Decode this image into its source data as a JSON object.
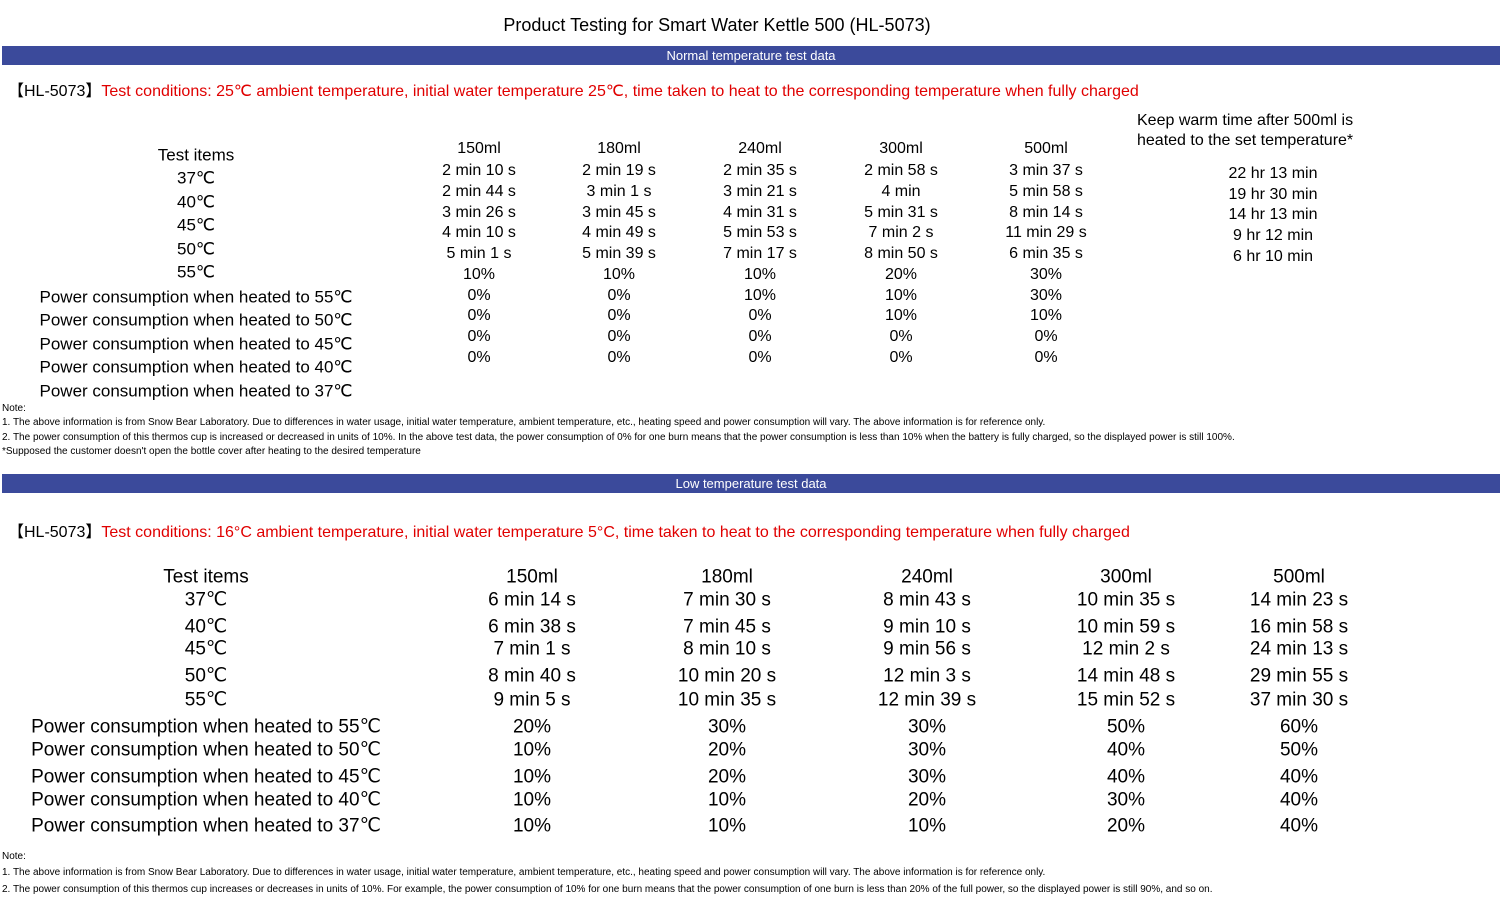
{
  "header": {
    "title": "Product Testing for Smart Water Kettle 500 (HL-5073)"
  },
  "sections": [
    {
      "banner": "Normal temperature test data",
      "prefix": "【HL-5073】",
      "conditions": "Test conditions: 25℃ ambient temperature, initial water temperature 25℃, time taken to heat to the corresponding temperature when fully charged",
      "row_labels": [
        "Test items",
        "37℃",
        "40℃",
        "45℃",
        "50℃",
        "55℃",
        "Power consumption when heated to 55℃",
        "Power consumption when heated to 50℃",
        "Power consumption when heated to 45℃",
        "Power consumption when heated to 40℃",
        "Power consumption when heated to 37℃"
      ],
      "columns": [
        {
          "header": "150ml",
          "values": [
            "2 min 10 s",
            "2 min 44 s",
            "3 min 26 s",
            "4 min 10 s",
            "5 min 1 s",
            "10%",
            "0%",
            "0%",
            "0%",
            "0%"
          ]
        },
        {
          "header": "180ml",
          "values": [
            "2 min 19 s",
            "3 min 1 s",
            "3 min 45 s",
            "4 min 49 s",
            "5 min 39 s",
            "10%",
            "0%",
            "0%",
            "0%",
            "0%"
          ]
        },
        {
          "header": "240ml",
          "values": [
            "2 min 35 s",
            "3 min 21 s",
            "4 min 31 s",
            "5 min 53 s",
            "7 min 17 s",
            "10%",
            "10%",
            "0%",
            "0%",
            "0%"
          ]
        },
        {
          "header": "300ml",
          "values": [
            "2 min 58 s",
            "4 min",
            "5 min 31 s",
            "7 min 2 s",
            "8 min 50 s",
            "20%",
            "10%",
            "10%",
            "0%",
            "0%"
          ]
        },
        {
          "header": "500ml",
          "values": [
            "3 min 37 s",
            "5 min 58 s",
            "8 min 14 s",
            "11 min 29 s",
            "6 min 35 s",
            "30%",
            "30%",
            "10%",
            "0%",
            "0%"
          ]
        }
      ],
      "keep_warm": {
        "header_lines": [
          "Keep warm time after 500ml is",
          "heated to the set temperature*"
        ],
        "values": [
          "22 hr 13 min",
          "19 hr 30 min",
          "14 hr 13 min",
          "9 hr 12 min",
          "6 hr 10 min"
        ]
      },
      "notes": [
        "Note:",
        "1. The above information is from Snow Bear Laboratory. Due to differences in water usage, initial water temperature, ambient temperature, etc., heating speed and power consumption will vary. The above information is for reference only.",
        "2. The power consumption of this thermos cup is increased or decreased in units of 10%. In the above test data, the power consumption of 0% for one burn means that the power consumption is less than 10% when the battery is fully charged, so the displayed power is still 100%.",
        "*Supposed the customer doesn't open the bottle cover after heating to the desired temperature"
      ]
    },
    {
      "banner": "Low temperature test data",
      "prefix": "【HL-5073】",
      "conditions": "Test conditions: 16°C ambient temperature, initial water temperature 5°C, time taken to heat to the corresponding temperature when fully charged",
      "row_labels": [
        "Test items",
        "37℃",
        "40℃",
        "45℃",
        "50℃",
        "55℃",
        "Power consumption when heated to 55℃",
        "Power consumption when heated to 50℃",
        "Power consumption when heated to 45℃",
        "Power consumption when heated to 40℃",
        "Power consumption when heated to 37℃"
      ],
      "columns": [
        {
          "header": "150ml",
          "values": [
            "6 min 14 s",
            "6 min 38 s",
            "7 min 1 s",
            "8 min 40 s",
            "9 min 5 s",
            "20%",
            "10%",
            "10%",
            "10%",
            "10%"
          ]
        },
        {
          "header": "180ml",
          "values": [
            "7 min 30 s",
            "7 min 45 s",
            "8 min 10 s",
            "10 min 20 s",
            "10 min 35 s",
            "30%",
            "20%",
            "20%",
            "10%",
            "10%"
          ]
        },
        {
          "header": "240ml",
          "values": [
            "8 min 43 s",
            "9 min 10 s",
            "9 min 56 s",
            "12 min 3 s",
            "12 min 39 s",
            "30%",
            "30%",
            "30%",
            "20%",
            "10%"
          ]
        },
        {
          "header": "300ml",
          "values": [
            "10 min 35 s",
            "10 min 59 s",
            "12 min 2 s",
            "14 min 48 s",
            "15 min 52 s",
            "50%",
            "40%",
            "40%",
            "30%",
            "20%"
          ]
        },
        {
          "header": "500ml",
          "values": [
            "14 min 23 s",
            "16 min 58 s",
            "24 min 13 s",
            "29 min 55 s",
            "37 min 30 s",
            "60%",
            "50%",
            "40%",
            "40%",
            "40%"
          ]
        }
      ],
      "notes": [
        "Note:",
        "1. The above information is from Snow Bear Laboratory. Due to differences in water usage, initial water temperature, ambient temperature, etc., heating speed and power consumption will vary. The above information is for reference only.",
        "2. The power consumption of this thermos cup increases or decreases in units of 10%. For example, the power consumption of 10% for one burn means that the power consumption of one burn is less than 20% of the full power, so the displayed power is still 90%, and so on."
      ]
    }
  ]
}
